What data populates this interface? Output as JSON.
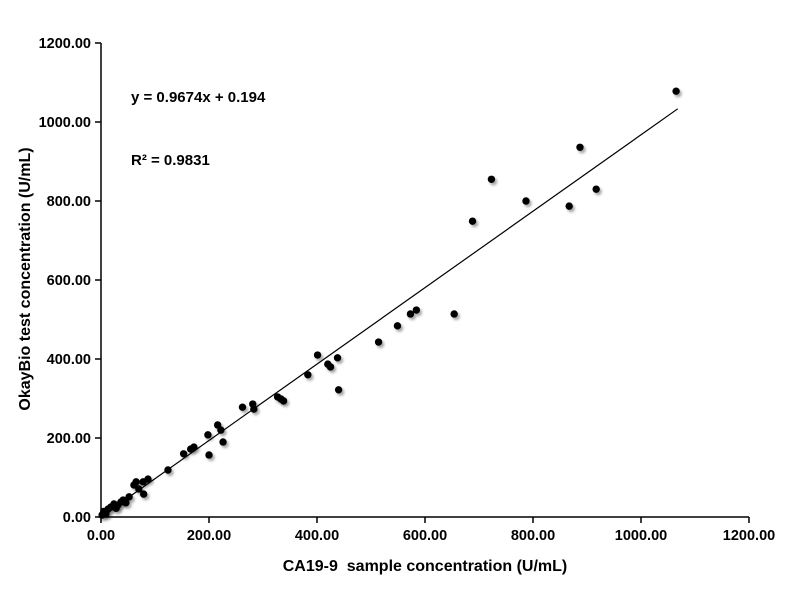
{
  "chart_data": {
    "type": "scatter",
    "title": "",
    "xlabel": "CA19-9  sample concentration (U/mL)",
    "ylabel": "OkayBio test concentration (U/mL)",
    "xlim": [
      0,
      1200
    ],
    "ylim": [
      0,
      1200
    ],
    "xticks": [
      0,
      200,
      400,
      600,
      800,
      1000,
      1200
    ],
    "yticks": [
      0,
      200,
      400,
      600,
      800,
      1000,
      1200
    ],
    "tick_decimals": 2,
    "grid": false,
    "legend": "none",
    "marker_color": "#000000",
    "marker_radius": 3.7,
    "line_color": "#000000",
    "annotation": [
      "y = 0.9674x + 0.194",
      "R² = 0.9831"
    ],
    "trendline": {
      "slope": 0.9674,
      "intercept": 0.194,
      "x_range": [
        0,
        1068
      ]
    },
    "points": [
      [
        2,
        5
      ],
      [
        5,
        14
      ],
      [
        9,
        8
      ],
      [
        13,
        20
      ],
      [
        18,
        25
      ],
      [
        24,
        33
      ],
      [
        28,
        22
      ],
      [
        31,
        30
      ],
      [
        37,
        38
      ],
      [
        41,
        43
      ],
      [
        46,
        36
      ],
      [
        52,
        51
      ],
      [
        61,
        81
      ],
      [
        65,
        89
      ],
      [
        70,
        71
      ],
      [
        78,
        89
      ],
      [
        79,
        58
      ],
      [
        87,
        96
      ],
      [
        124,
        119
      ],
      [
        153,
        160
      ],
      [
        166,
        172
      ],
      [
        172,
        177
      ],
      [
        198,
        208
      ],
      [
        200,
        157
      ],
      [
        216,
        233
      ],
      [
        222,
        220
      ],
      [
        226,
        190
      ],
      [
        262,
        278
      ],
      [
        281,
        286
      ],
      [
        283,
        273
      ],
      [
        327,
        304
      ],
      [
        333,
        299
      ],
      [
        338,
        294
      ],
      [
        383,
        360
      ],
      [
        401,
        410
      ],
      [
        420,
        387
      ],
      [
        425,
        380
      ],
      [
        438,
        403
      ],
      [
        440,
        322
      ],
      [
        514,
        443
      ],
      [
        549,
        484
      ],
      [
        573,
        514
      ],
      [
        584,
        524
      ],
      [
        654,
        514
      ],
      [
        688,
        749
      ],
      [
        723,
        855
      ],
      [
        787,
        800
      ],
      [
        867,
        787
      ],
      [
        887,
        936
      ],
      [
        917,
        830
      ],
      [
        1065,
        1078
      ]
    ]
  }
}
